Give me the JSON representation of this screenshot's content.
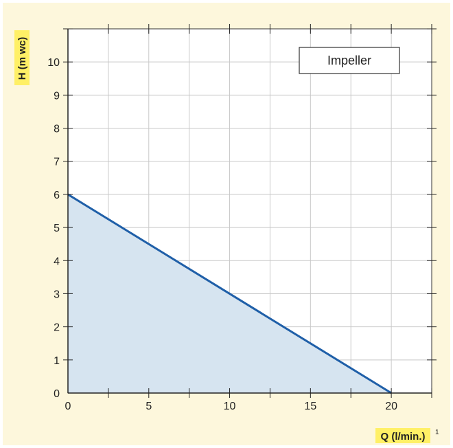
{
  "chart_data": {
    "type": "area",
    "title": "",
    "xlabel": "Q (l/min.)",
    "xlabel_footnote": "1",
    "ylabel": "H (m wc)",
    "legend": "Impeller",
    "legend_position": "top-right",
    "xlim": [
      0,
      22.5
    ],
    "ylim": [
      0,
      11
    ],
    "x_ticks": [
      0,
      5,
      10,
      15,
      20
    ],
    "y_ticks": [
      0,
      1,
      2,
      3,
      4,
      5,
      6,
      7,
      8,
      9,
      10
    ],
    "grid": true,
    "series": [
      {
        "name": "Impeller",
        "x": [
          0,
          20
        ],
        "y": [
          6,
          0
        ]
      }
    ]
  },
  "colors": {
    "background": "#fdf7dc",
    "line": "#1f5fa8",
    "fill": "#d6e4f0",
    "grid": "#c8c8c8",
    "label_highlight": "#fff066"
  }
}
